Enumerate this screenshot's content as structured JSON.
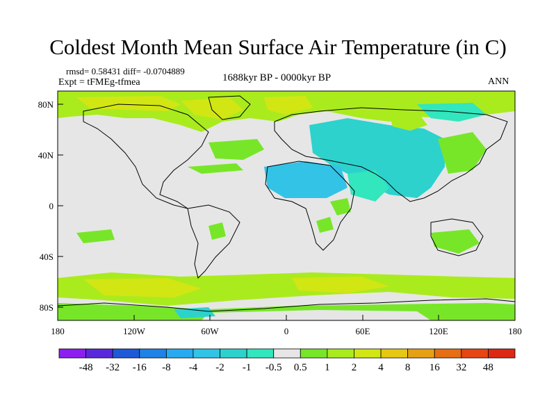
{
  "title": "Coldest Month Mean Surface Air Temperature (in C)",
  "stats": {
    "rmsd_diff": "rmsd= 0.58431 diff= -0.0704889",
    "expt": "Expt = tFMEg-tfmea",
    "period": "1688kyr BP - 0000kyr BP",
    "season": "ANN"
  },
  "axes": {
    "x_ticks": [
      "180",
      "120W",
      "60W",
      "0",
      "60E",
      "120E",
      "180"
    ],
    "y_ticks": [
      "80N",
      "40N",
      "0",
      "40S",
      "80S"
    ]
  },
  "colorbar": {
    "labels": [
      "-48",
      "-32",
      "-16",
      "-8",
      "-4",
      "-2",
      "-1",
      "-0.5",
      "0.5",
      "1",
      "2",
      "4",
      "8",
      "16",
      "32",
      "48"
    ],
    "colors": [
      "#8c1ef0",
      "#5a28dc",
      "#1e5ad7",
      "#1e82e6",
      "#28aaf0",
      "#32c3e6",
      "#2dd2cd",
      "#32e6be",
      "#e6e6e6",
      "#78e628",
      "#aaeb1e",
      "#d2e614",
      "#e6c814",
      "#e6a014",
      "#e66e14",
      "#e64614",
      "#dc2814"
    ]
  },
  "map_colors": {
    "land_outline": "#000000",
    "neutral": "#e6e6e6",
    "green": "#78e628",
    "yellowgreen": "#aaeb1e",
    "yellow": "#d2e614",
    "cyan": "#2dd2cd",
    "lightcyan": "#32e6be",
    "blue": "#32c3e6"
  }
}
